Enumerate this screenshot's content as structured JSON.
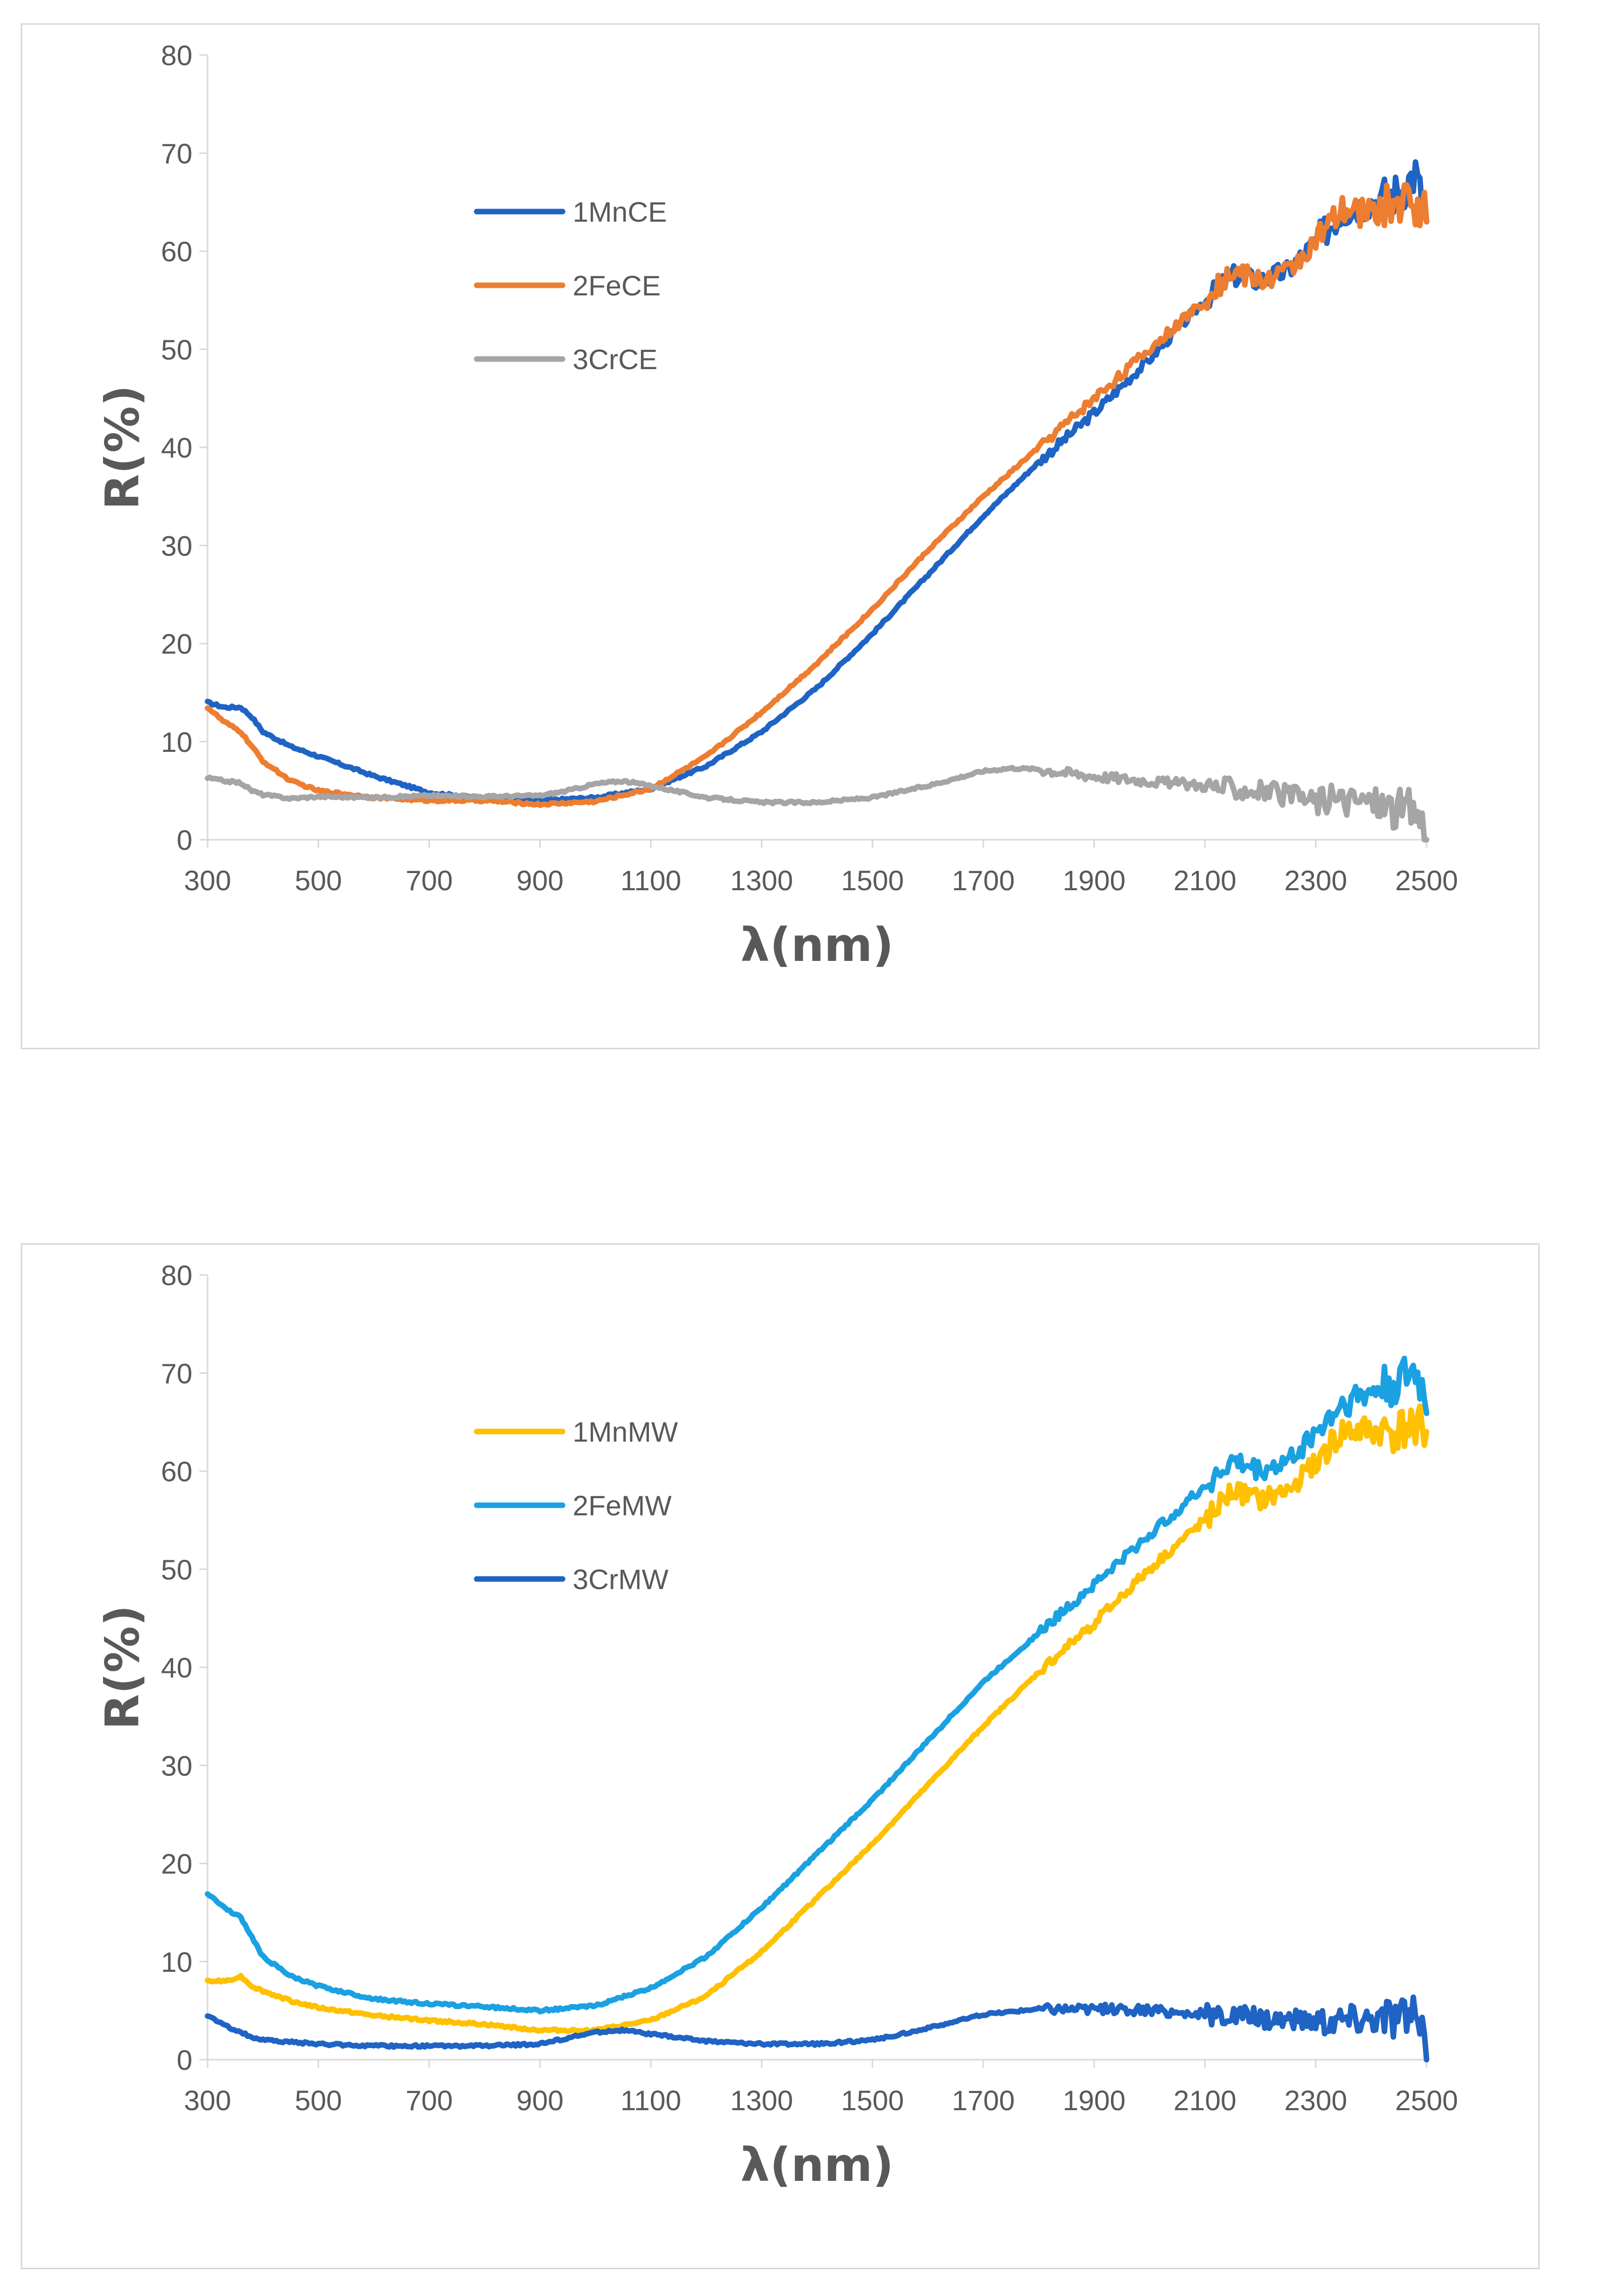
{
  "chart_data": [
    {
      "type": "line",
      "title": "",
      "xlabel": "λ(nm)",
      "ylabel": "R(%)",
      "xlim": [
        300,
        2500
      ],
      "ylim": [
        0,
        80
      ],
      "xticks": [
        300,
        500,
        700,
        900,
        1100,
        1300,
        1500,
        1700,
        1900,
        2100,
        2300,
        2500
      ],
      "yticks": [
        0,
        10,
        20,
        30,
        40,
        50,
        60,
        70,
        80
      ],
      "grid": false,
      "legend_position": "upper-left",
      "series": [
        {
          "name": "1MnCE",
          "color": "#1F64C4",
          "x": [
            300,
            330,
            360,
            380,
            400,
            450,
            500,
            600,
            700,
            800,
            900,
            1000,
            1100,
            1200,
            1300,
            1400,
            1500,
            1600,
            1700,
            1800,
            1900,
            2000,
            2100,
            2150,
            2200,
            2250,
            2300,
            2350,
            2400,
            2450,
            2480,
            2500
          ],
          "y": [
            14,
            13.5,
            13.5,
            12.5,
            11,
            9.5,
            8.5,
            6.5,
            4.8,
            4.2,
            4.0,
            4.3,
            5.2,
            7.5,
            11,
            15.5,
            21,
            27,
            33,
            38.5,
            43.5,
            49,
            55,
            57.5,
            57,
            58,
            61,
            64,
            65,
            66,
            68,
            63
          ]
        },
        {
          "name": "2FeCE",
          "color": "#ED7D31",
          "x": [
            300,
            330,
            360,
            380,
            400,
            450,
            500,
            600,
            700,
            800,
            900,
            1000,
            1100,
            1200,
            1300,
            1400,
            1500,
            1600,
            1700,
            1800,
            1900,
            2000,
            2100,
            2150,
            2200,
            2250,
            2300,
            2350,
            2400,
            2450,
            2480,
            2500
          ],
          "y": [
            13.5,
            12,
            11,
            9.5,
            8,
            6,
            5,
            4.3,
            4.0,
            4.0,
            3.6,
            3.9,
            5.2,
            8.5,
            13,
            18,
            23.5,
            29.5,
            35,
            40,
            45,
            50,
            55,
            58,
            57,
            58,
            61,
            64,
            64,
            65,
            65,
            64
          ]
        },
        {
          "name": "3CrCE",
          "color": "#A5A5A5",
          "x": [
            300,
            330,
            360,
            380,
            400,
            450,
            500,
            600,
            700,
            800,
            900,
            950,
            1000,
            1050,
            1100,
            1200,
            1300,
            1400,
            1500,
            1600,
            1700,
            1750,
            1800,
            1900,
            2000,
            2100,
            2200,
            2300,
            2400,
            2450,
            2480,
            2500
          ],
          "y": [
            6.3,
            6,
            5.8,
            5,
            4.6,
            4.2,
            4.4,
            4.3,
            4.5,
            4.4,
            4.5,
            5,
            5.7,
            6,
            5.5,
            4.3,
            3.8,
            3.8,
            4.3,
            5.5,
            7,
            7.3,
            7.2,
            6.5,
            6,
            5.5,
            5,
            4,
            4,
            3,
            3,
            1
          ]
        }
      ]
    },
    {
      "type": "line",
      "title": "",
      "xlabel": "λ(nm)",
      "ylabel": "R(%)",
      "xlim": [
        300,
        2500
      ],
      "ylim": [
        0,
        80
      ],
      "xticks": [
        300,
        500,
        700,
        900,
        1100,
        1300,
        1500,
        1700,
        1900,
        2100,
        2300,
        2500
      ],
      "yticks": [
        0,
        10,
        20,
        30,
        40,
        50,
        60,
        70,
        80
      ],
      "grid": false,
      "legend_position": "upper-left",
      "series": [
        {
          "name": "1MnMW",
          "color": "#FFC000",
          "x": [
            300,
            330,
            360,
            380,
            400,
            450,
            500,
            600,
            700,
            800,
            900,
            1000,
            1100,
            1200,
            1300,
            1400,
            1500,
            1600,
            1700,
            1800,
            1900,
            2000,
            2100,
            2150,
            2200,
            2250,
            2300,
            2350,
            2400,
            2450,
            2480,
            2500
          ],
          "y": [
            8,
            8,
            8.5,
            7.5,
            7,
            6,
            5.3,
            4.5,
            4,
            3.6,
            3.0,
            3.0,
            4,
            6.5,
            11,
            16.5,
            22,
            28,
            34,
            39.5,
            44.5,
            50,
            55,
            58,
            57,
            58,
            61,
            64,
            64,
            64,
            65,
            64
          ]
        },
        {
          "name": "2FeMW",
          "color": "#1BA1E2",
          "x": [
            300,
            330,
            360,
            380,
            400,
            450,
            500,
            600,
            700,
            800,
            900,
            1000,
            1100,
            1200,
            1300,
            1400,
            1500,
            1600,
            1700,
            1800,
            1900,
            2000,
            2100,
            2150,
            2200,
            2250,
            2300,
            2350,
            2400,
            2450,
            2480,
            2500
          ],
          "y": [
            17,
            15.5,
            14.5,
            12.5,
            10.5,
            8.5,
            7.5,
            6.2,
            5.7,
            5.4,
            5.0,
            5.5,
            7.3,
            10.5,
            15.5,
            21,
            26.5,
            32.5,
            38.5,
            43.5,
            48.5,
            53.5,
            58.5,
            61,
            60,
            61,
            64,
            67,
            68,
            69,
            70,
            67
          ]
        },
        {
          "name": "3CrMW",
          "color": "#1F64C4",
          "x": [
            300,
            330,
            360,
            380,
            400,
            450,
            500,
            600,
            700,
            800,
            900,
            950,
            1000,
            1050,
            1100,
            1200,
            1300,
            1400,
            1500,
            1600,
            1700,
            1800,
            1900,
            2000,
            2100,
            2200,
            2300,
            2400,
            2450,
            2480,
            2500
          ],
          "y": [
            4.5,
            3.5,
            2.8,
            2.3,
            2,
            1.8,
            1.6,
            1.4,
            1.4,
            1.4,
            1.6,
            2.2,
            2.8,
            3.0,
            2.6,
            1.9,
            1.6,
            1.6,
            2,
            3.2,
            4.6,
            5.2,
            5.2,
            5,
            4.6,
            4.3,
            4,
            4.3,
            4.5,
            4.2,
            1
          ]
        }
      ]
    }
  ]
}
